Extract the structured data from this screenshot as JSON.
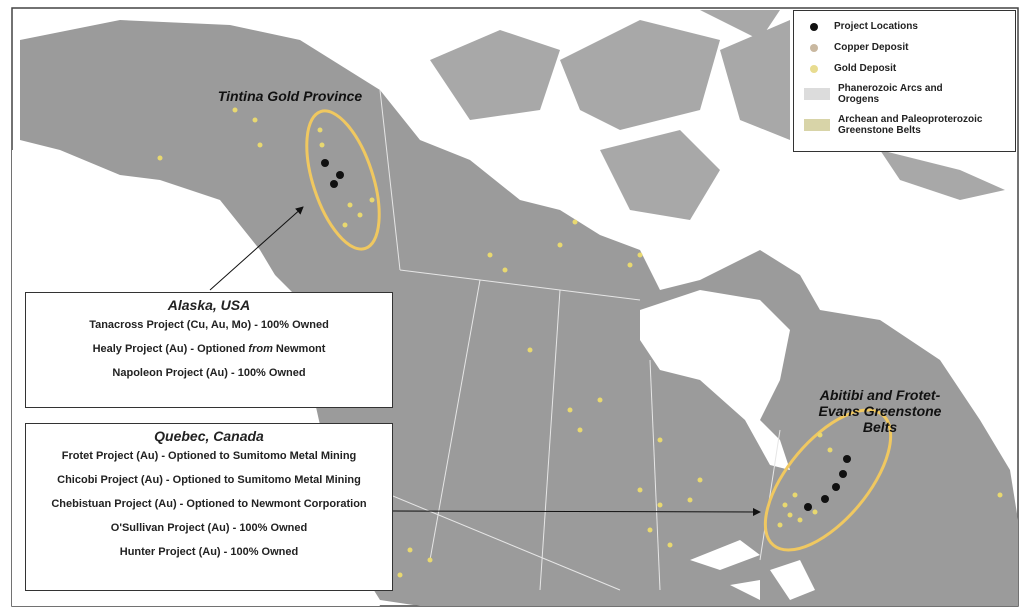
{
  "map": {
    "labels": {
      "tintina": "Tintina Gold Province",
      "abitibi": "Abitibi and Frotet-Evans Greenstone Belts"
    },
    "colors": {
      "project": "#111111",
      "copper": "#c9a99a",
      "gold": "#e8d870",
      "ellipse": "#f0c860",
      "land": "#9a9a9a",
      "water": "#ffffff"
    }
  },
  "legend": {
    "items": [
      {
        "label": "Project Locations",
        "icon": "black-dot"
      },
      {
        "label": "Copper Deposit",
        "icon": "tan-dot"
      },
      {
        "label": "Gold Deposit",
        "icon": "yellow-dot"
      },
      {
        "label": "Phanerozoic Arcs and Orogens",
        "icon": "gray-swatch"
      },
      {
        "label": "Archean and Paleoproterozoic Greenstone Belts",
        "icon": "olive-swatch"
      }
    ]
  },
  "alaska_box": {
    "title": "Alaska, USA",
    "rows": [
      "Tanacross Project (Cu, Au, Mo) - 100% Owned",
      "Healy Project (Au) - Optioned from Newmont",
      "Napoleon Project (Au) - 100% Owned"
    ]
  },
  "quebec_box": {
    "title": "Quebec, Canada",
    "rows": [
      "Frotet Project (Au) - Optioned to Sumitomo Metal Mining",
      "Chicobi Project (Au) - Optioned to Sumitomo Metal Mining",
      "Chebistuan Project (Au) - Optioned to Newmont Corporation",
      "O'Sullivan Project (Au) - 100% Owned",
      "Hunter Project (Au) - 100% Owned"
    ]
  }
}
